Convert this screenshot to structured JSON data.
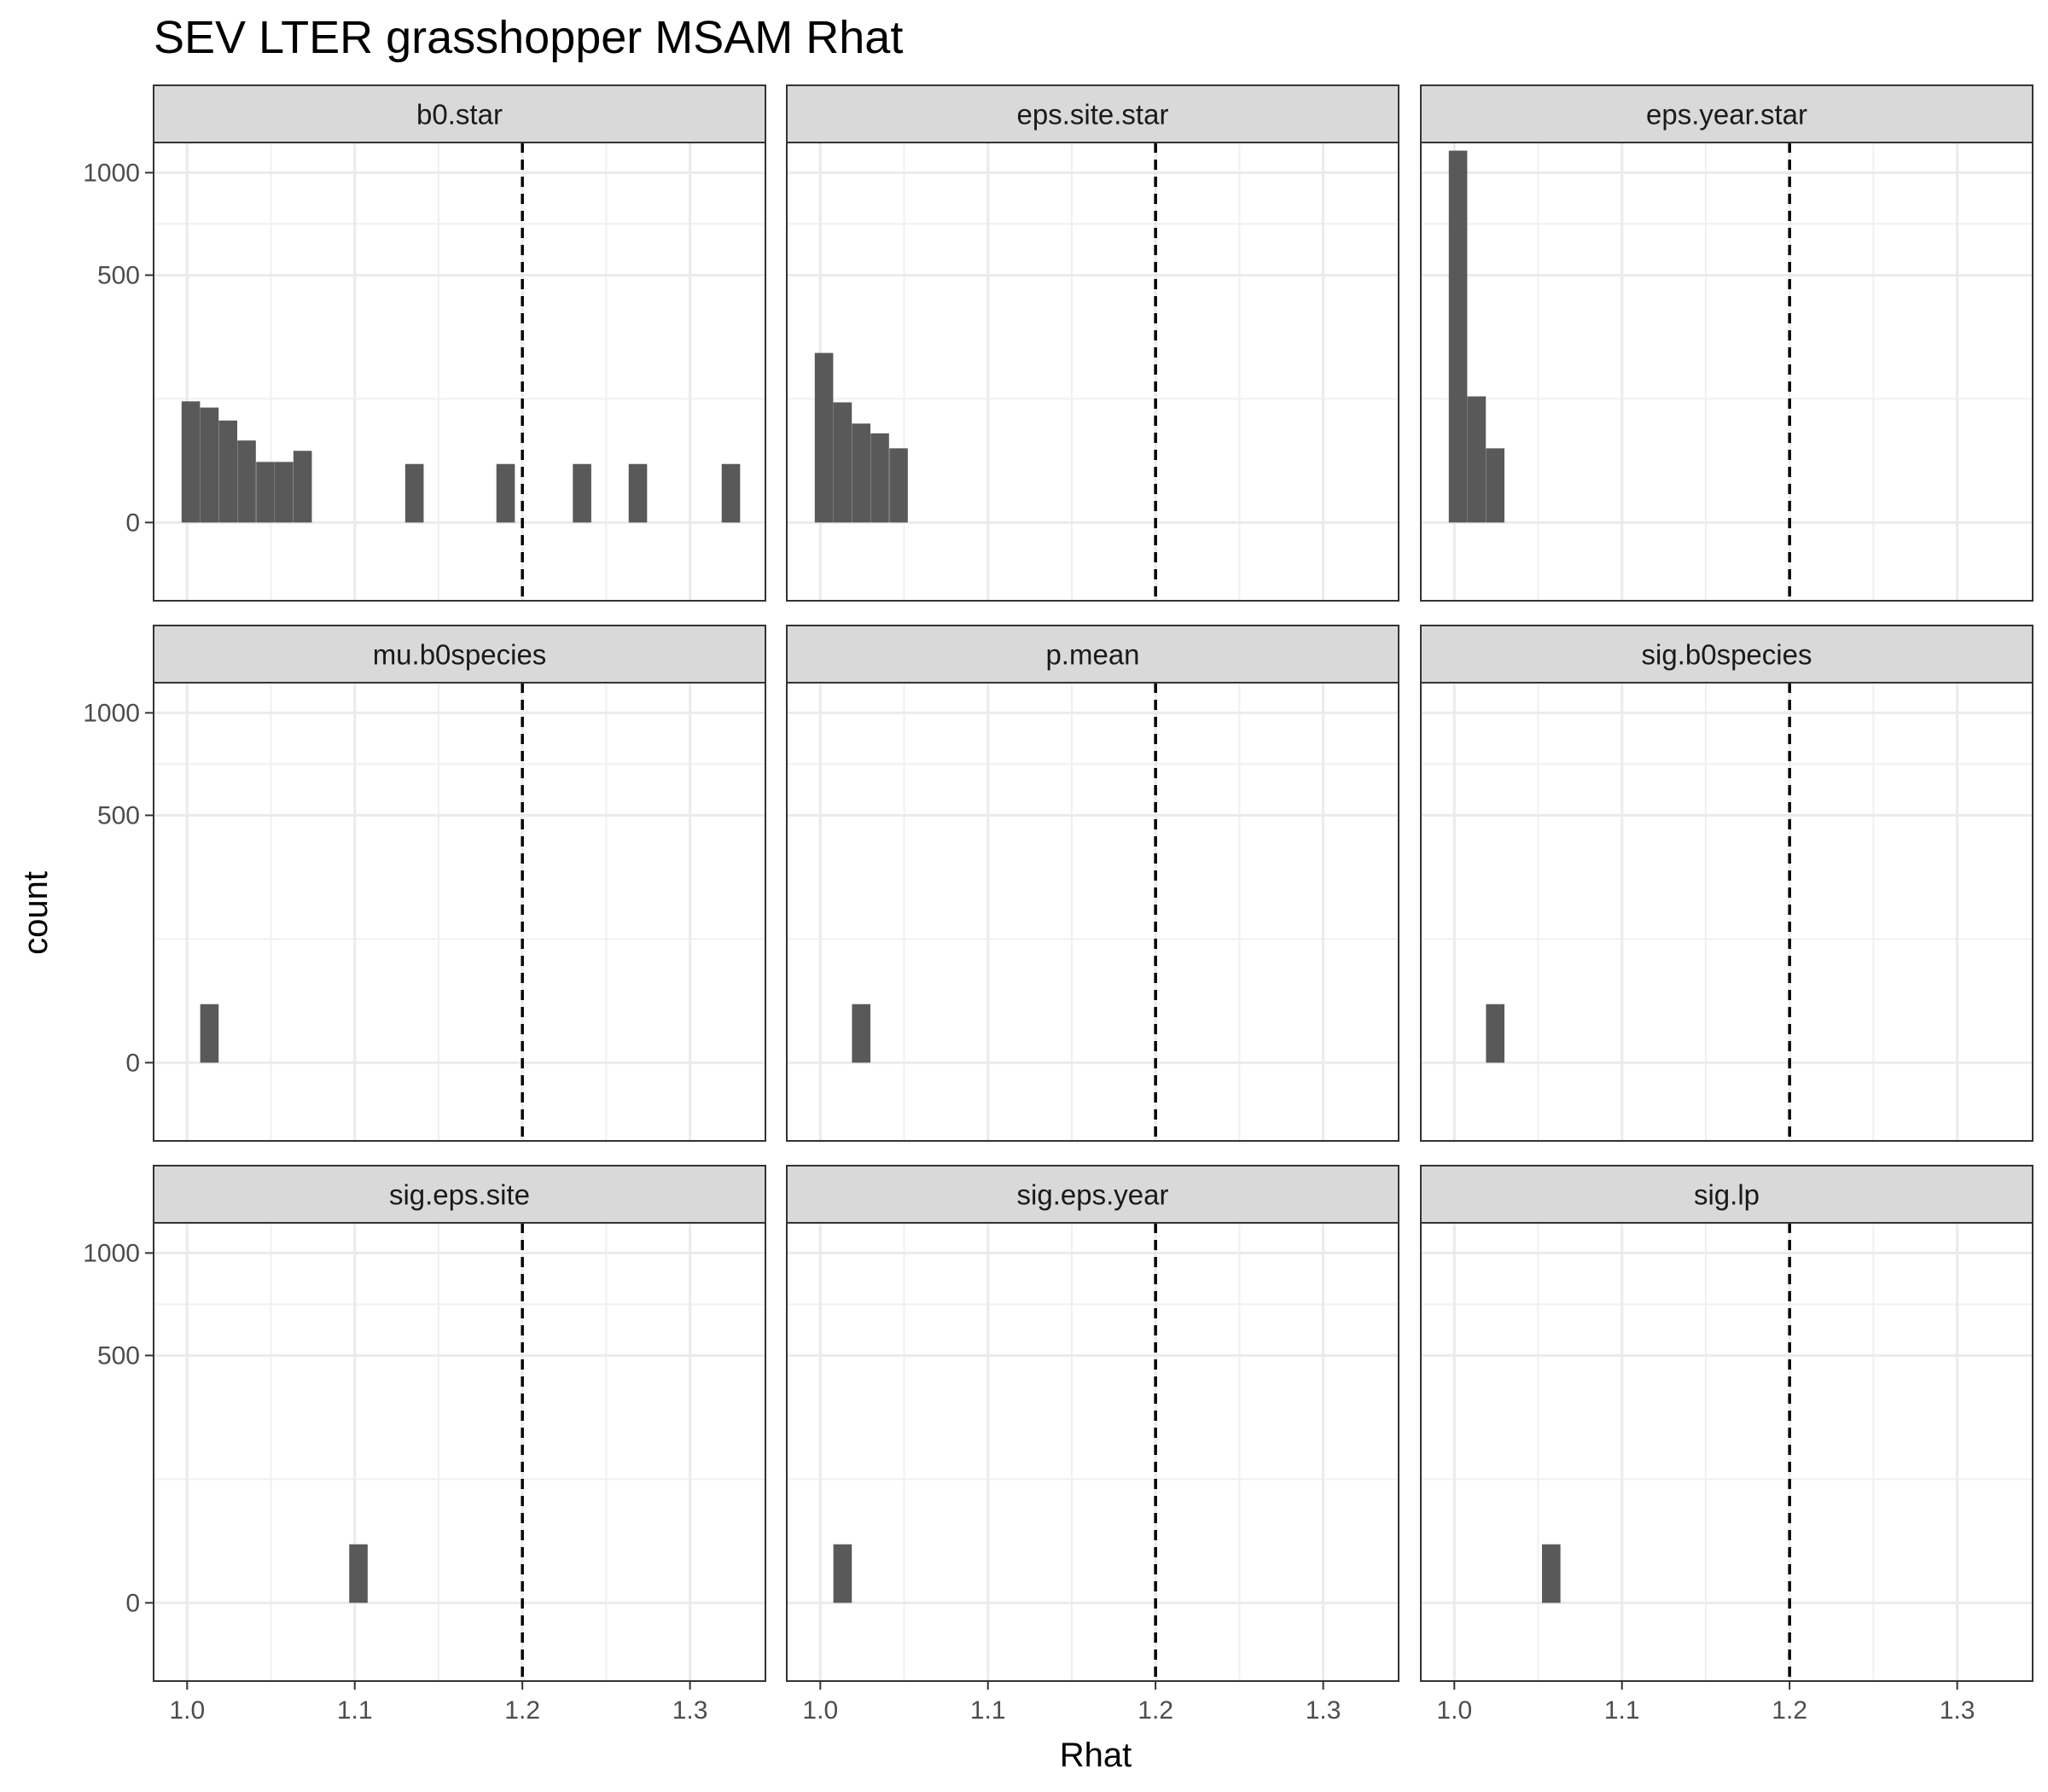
{
  "chart_data": {
    "type": "bar",
    "title": "SEV LTER grasshopper MSAM Rhat",
    "xlabel": "Rhat",
    "ylabel": "count",
    "xlim": [
      0.98,
      1.345
    ],
    "ylim": [
      -50,
      1180
    ],
    "x_ticks": [
      1.0,
      1.1,
      1.2,
      1.3
    ],
    "x_tick_labels": [
      "1.0",
      "1.1",
      "1.2",
      "1.3"
    ],
    "y_ticks": [
      0,
      500,
      1000
    ],
    "y_tick_labels": [
      "0",
      "500",
      "1000"
    ],
    "y_scale": "sqrt",
    "bin_width": 0.011,
    "reference_line": {
      "x": 1.2,
      "style": "dashed",
      "color": "#000000"
    },
    "bar_color": "#595959",
    "grid": true,
    "facets": [
      {
        "label": "b0.star",
        "bins": [
          {
            "x": 1.0022,
            "count": 120
          },
          {
            "x": 1.0133,
            "count": 108
          },
          {
            "x": 1.0244,
            "count": 85
          },
          {
            "x": 1.0355,
            "count": 55
          },
          {
            "x": 1.0467,
            "count": 30
          },
          {
            "x": 1.0578,
            "count": 30
          },
          {
            "x": 1.0689,
            "count": 42
          },
          {
            "x": 1.1356,
            "count": 28
          },
          {
            "x": 1.19,
            "count": 28
          },
          {
            "x": 1.2356,
            "count": 28
          },
          {
            "x": 1.2689,
            "count": 28
          },
          {
            "x": 1.3244,
            "count": 28
          }
        ]
      },
      {
        "label": "eps.site.star",
        "bins": [
          {
            "x": 1.0022,
            "count": 235
          },
          {
            "x": 1.0133,
            "count": 118
          },
          {
            "x": 1.0244,
            "count": 80
          },
          {
            "x": 1.0355,
            "count": 65
          },
          {
            "x": 1.0467,
            "count": 45
          }
        ]
      },
      {
        "label": "eps.year.star",
        "bins": [
          {
            "x": 1.0022,
            "count": 1130
          },
          {
            "x": 1.0133,
            "count": 130
          },
          {
            "x": 1.0244,
            "count": 45
          }
        ]
      },
      {
        "label": "mu.b0species",
        "bins": [
          {
            "x": 1.0133,
            "count": 28
          }
        ]
      },
      {
        "label": "p.mean",
        "bins": [
          {
            "x": 1.0244,
            "count": 28
          }
        ]
      },
      {
        "label": "sig.b0species",
        "bins": [
          {
            "x": 1.0244,
            "count": 28
          }
        ]
      },
      {
        "label": "sig.eps.site",
        "bins": [
          {
            "x": 1.1022,
            "count": 28
          }
        ]
      },
      {
        "label": "sig.eps.year",
        "bins": [
          {
            "x": 1.0133,
            "count": 28
          }
        ]
      },
      {
        "label": "sig.lp",
        "bins": [
          {
            "x": 1.0578,
            "count": 28
          }
        ]
      }
    ]
  }
}
